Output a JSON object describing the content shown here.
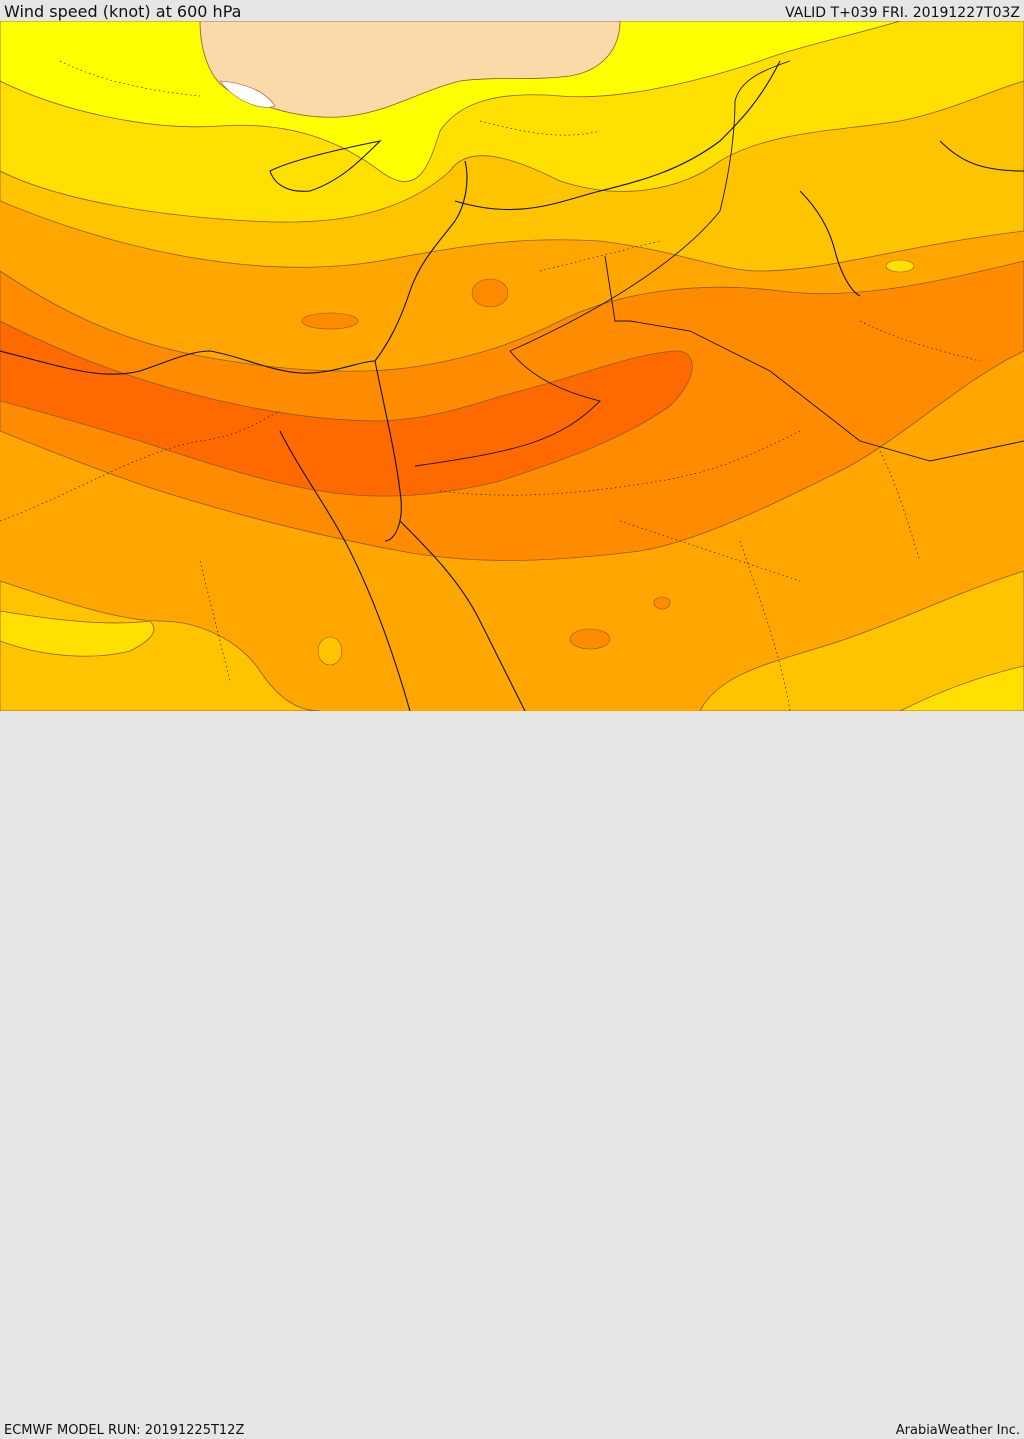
{
  "header": {
    "title": "Wind speed (knot) at 600 hPa",
    "valid": "VALID T+039 FRI. 20191227T03Z"
  },
  "footer": {
    "run": "ECMWF MODEL RUN: 20191225T12Z",
    "credit": "ArabiaWeather Inc."
  },
  "palette": {
    "light_tan": "#fbd9a8",
    "bright_yellow": "#ffff00",
    "yellow": "#ffe000",
    "gold": "#ffc400",
    "light_orange": "#ffa600",
    "orange": "#ff8c00",
    "dark_orange": "#ff6a00",
    "white": "#ffffff",
    "contour": "#8a5a30",
    "border": "#111111"
  }
}
